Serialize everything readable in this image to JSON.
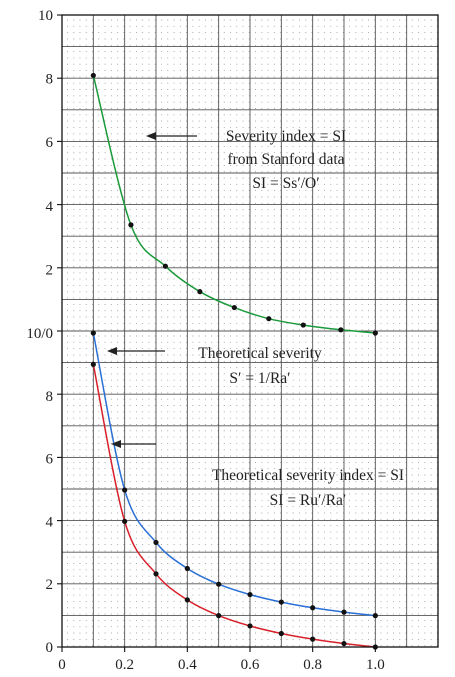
{
  "chart_data": {
    "type": "line",
    "panels": [
      {
        "name": "upper",
        "ylim": [
          0,
          10
        ],
        "yticks": [
          "2",
          "4",
          "6",
          "8",
          "10"
        ],
        "series": [
          {
            "color": "#1a9a3a",
            "x": [
              0.1,
              0.22,
              0.33,
              0.44,
              0.55,
              0.66,
              0.77,
              0.89,
              1.0
            ],
            "y": [
              8.1,
              3.4,
              2.1,
              1.3,
              0.8,
              0.45,
              0.25,
              0.1,
              0.0
            ]
          }
        ],
        "annotations": [
          {
            "lines": [
              "Severity index = SI",
              "from Stanford data",
              "SI = Ss′/O′"
            ]
          }
        ]
      },
      {
        "name": "lower",
        "ylim": [
          0,
          10
        ],
        "yticks": [
          "0",
          "2",
          "4",
          "6",
          "8",
          "10/0"
        ],
        "series": [
          {
            "color": "#2a6fd6",
            "x": [
              0.1,
              0.2,
              0.3,
              0.4,
              0.5,
              0.6,
              0.7,
              0.8,
              0.9,
              1.0
            ],
            "y": [
              10.0,
              5.0,
              3.33,
              2.5,
              2.0,
              1.67,
              1.43,
              1.25,
              1.11,
              1.0
            ]
          },
          {
            "color": "#d8202a",
            "x": [
              0.1,
              0.2,
              0.3,
              0.4,
              0.5,
              0.6,
              0.7,
              0.8,
              0.9,
              1.0
            ],
            "y": [
              9.0,
              4.0,
              2.33,
              1.5,
              1.0,
              0.67,
              0.43,
              0.25,
              0.11,
              0.0
            ]
          }
        ],
        "annotations": [
          {
            "lines": [
              "Theoretical severity",
              "S′ = 1/Ra′"
            ]
          },
          {
            "lines": [
              "Theoretical severity index = SI",
              "SI = Ru′/Ra′"
            ]
          }
        ]
      }
    ],
    "xlim": [
      0,
      1.2
    ],
    "xticks": [
      "0",
      "0.2",
      "0.4",
      "0.6",
      "0.8",
      "1.0"
    ],
    "xticks_values": [
      0,
      0.2,
      0.4,
      0.6,
      0.8,
      1.0
    ],
    "grid": true
  }
}
